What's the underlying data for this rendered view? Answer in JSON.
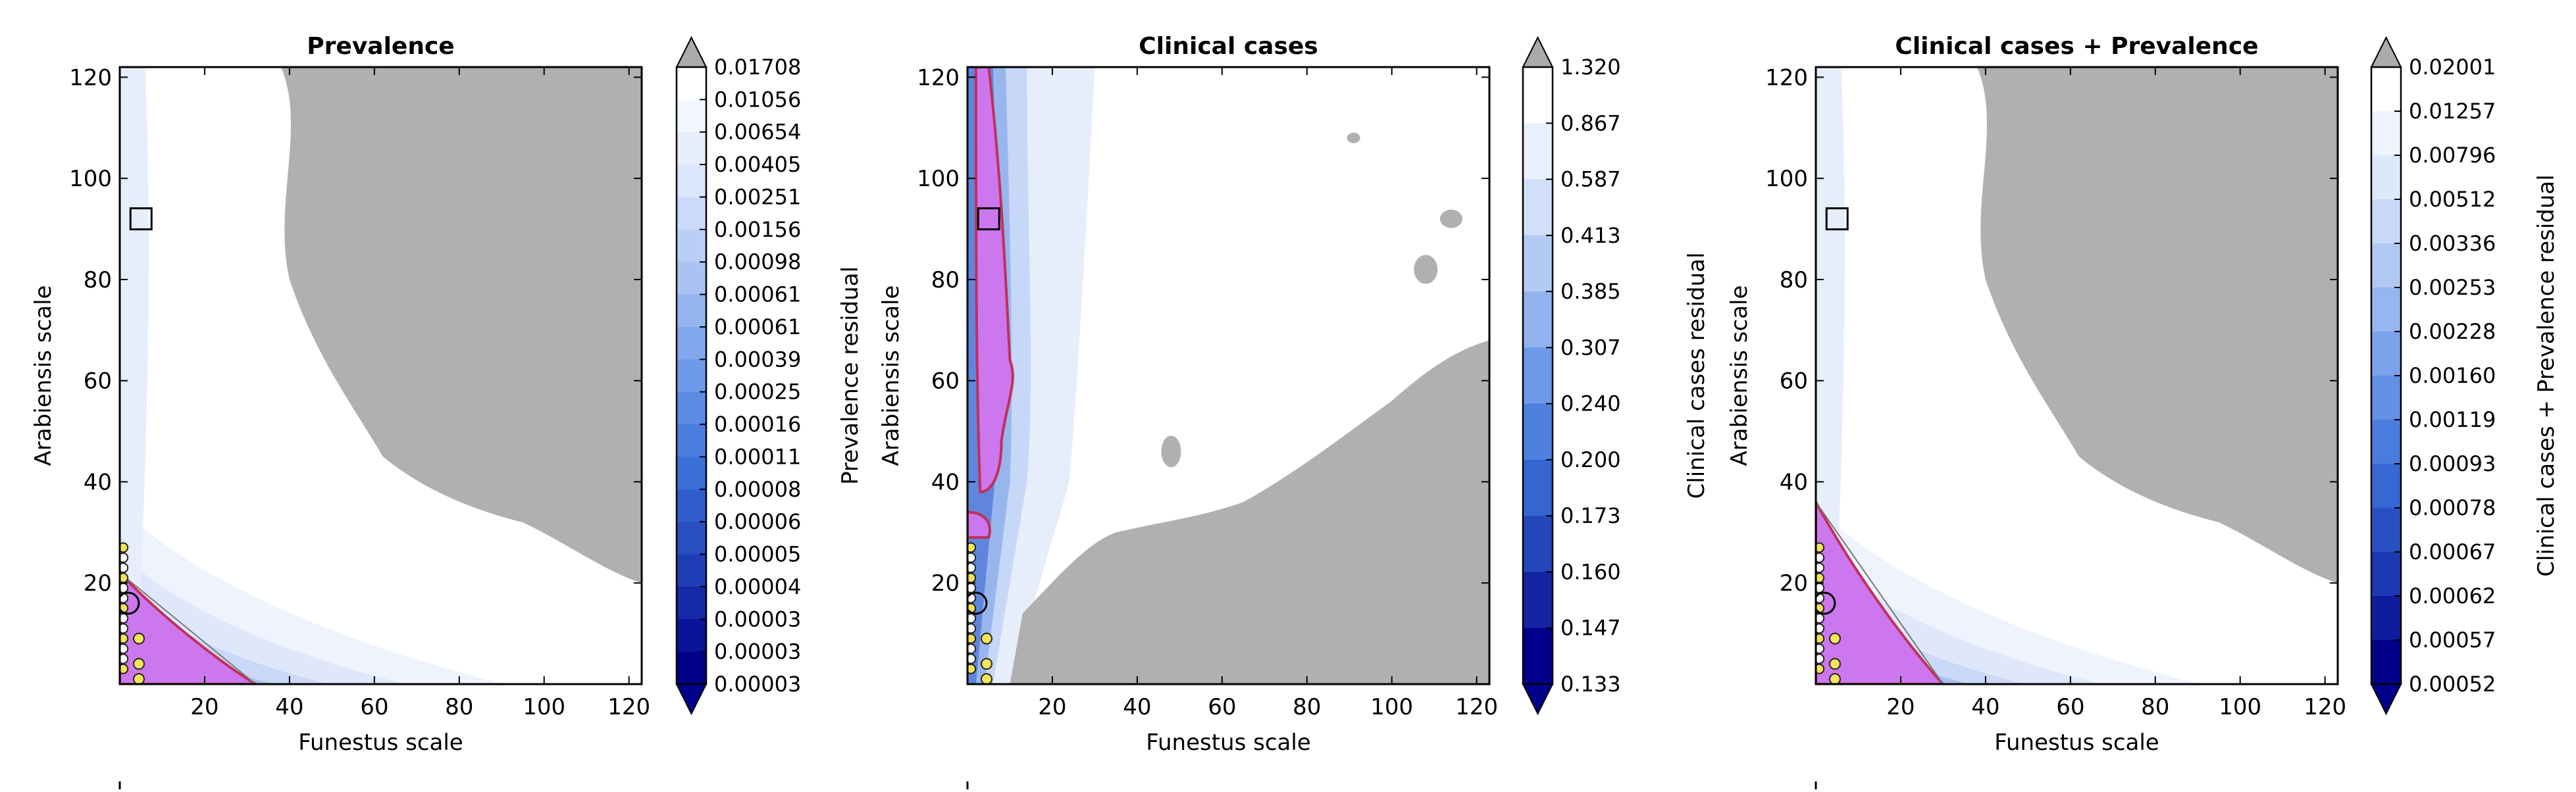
{
  "chart_data": [
    {
      "type": "heatmap",
      "title": "Prevalence",
      "xlabel": "Funestus scale",
      "ylabel": "Arabiensis scale",
      "xlim": [
        0,
        123
      ],
      "ylim": [
        0,
        122
      ],
      "x_ticks": [
        20,
        40,
        60,
        80,
        100,
        120
      ],
      "y_ticks": [
        20,
        40,
        60,
        80,
        100,
        120
      ],
      "colorbar_label": "Prevalence residual",
      "colorbar_levels": [
        "0.01708",
        "0.01056",
        "0.00654",
        "0.00405",
        "0.00251",
        "0.00156",
        "0.00098",
        "0.00061",
        "0.00061",
        "0.00039",
        "0.00025",
        "0.00016",
        "0.00011",
        "0.00008",
        "0.00006",
        "0.00005",
        "0.00004",
        "0.00003",
        "0.00003",
        "0.00003"
      ],
      "square_marker": {
        "x": 5,
        "y": 92
      },
      "circle_marker": {
        "x": 2,
        "y": 16
      },
      "gray_region": "upper-right",
      "magenta_region": "lower-left"
    },
    {
      "type": "heatmap",
      "title": "Clinical cases",
      "xlabel": "Funestus scale",
      "ylabel": "Arabiensis scale",
      "xlim": [
        0,
        123
      ],
      "ylim": [
        0,
        122
      ],
      "x_ticks": [
        20,
        40,
        60,
        80,
        100,
        120
      ],
      "y_ticks": [
        20,
        40,
        60,
        80,
        100,
        120
      ],
      "colorbar_label": "Clinical cases residual",
      "colorbar_levels": [
        "1.320",
        "0.867",
        "0.587",
        "0.413",
        "0.385",
        "0.307",
        "0.240",
        "0.200",
        "0.173",
        "0.160",
        "0.147",
        "0.133"
      ],
      "square_marker": {
        "x": 5,
        "y": 92
      },
      "circle_marker": {
        "x": 2,
        "y": 16
      },
      "gray_region": "lower-right",
      "magenta_region": "left-strip"
    },
    {
      "type": "heatmap",
      "title": "Clinical cases + Prevalence",
      "xlabel": "Funestus scale",
      "ylabel": "Arabiensis scale",
      "xlim": [
        0,
        123
      ],
      "ylim": [
        0,
        122
      ],
      "x_ticks": [
        20,
        40,
        60,
        80,
        100,
        120
      ],
      "y_ticks": [
        20,
        40,
        60,
        80,
        100,
        120
      ],
      "colorbar_label": "Clinical cases + Prevalence residual",
      "colorbar_levels": [
        "0.02001",
        "0.01257",
        "0.00796",
        "0.00512",
        "0.00336",
        "0.00253",
        "0.00228",
        "0.00160",
        "0.00119",
        "0.00093",
        "0.00078",
        "0.00067",
        "0.00062",
        "0.00057",
        "0.00052"
      ],
      "square_marker": {
        "x": 5,
        "y": 92
      },
      "circle_marker": {
        "x": 2,
        "y": 16
      },
      "gray_region": "upper-right",
      "magenta_region": "lower-left"
    }
  ],
  "colors": {
    "gray_region": "#b0b0b0",
    "magenta_region": "#cc77ee",
    "magenta_outline": "#c0305a",
    "colormap_dark": "#00008b",
    "colormap_light": "#ffffff",
    "over_color": "#aaaaaa"
  }
}
